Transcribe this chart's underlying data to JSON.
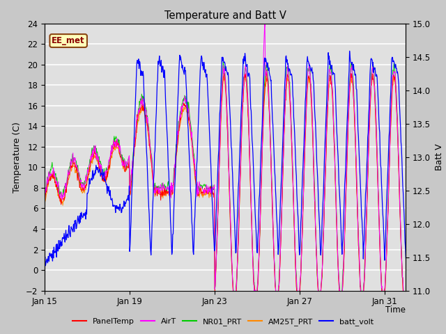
{
  "title": "Temperature and Batt V",
  "xlabel": "Time",
  "ylabel_left": "Temperature (C)",
  "ylabel_right": "Batt V",
  "ylim_left": [
    -2,
    24
  ],
  "ylim_right": [
    11.0,
    15.0
  ],
  "yticks_left": [
    -2,
    0,
    2,
    4,
    6,
    8,
    10,
    12,
    14,
    16,
    18,
    20,
    22,
    24
  ],
  "yticks_right": [
    11.0,
    11.5,
    12.0,
    12.5,
    13.0,
    13.5,
    14.0,
    14.5,
    15.0
  ],
  "xtick_labels": [
    "Jan 15",
    "Jan 19",
    "Jan 23",
    "Jan 27",
    "Jan 31"
  ],
  "xtick_positions_day": [
    0,
    4,
    8,
    12,
    16
  ],
  "annotation_text": "EE_met",
  "colors": {
    "PanelTemp": "#ff0000",
    "AirT": "#ff00ff",
    "NR01_PRT": "#00cc00",
    "AM25T_PRT": "#ff8800",
    "batt_volt": "#0000ff"
  },
  "legend_labels": [
    "PanelTemp",
    "AirT",
    "NR01_PRT",
    "AM25T_PRT",
    "batt_volt"
  ],
  "fig_facecolor": "#c8c8c8",
  "ax_facecolor": "#e0e0e0",
  "grid_color": "#ffffff",
  "n_days": 17,
  "n_per_day": 48
}
